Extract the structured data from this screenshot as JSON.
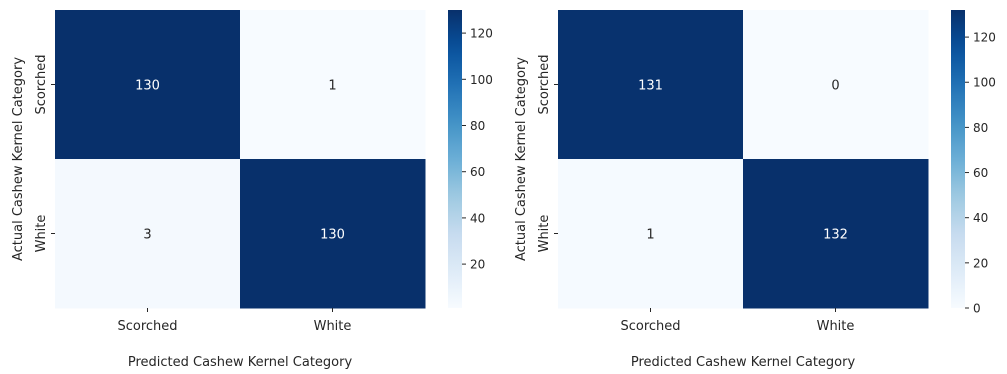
{
  "chart_data": [
    {
      "type": "heatmap",
      "xlabel": "Predicted Cashew Kernel Category",
      "ylabel": "Actual Cashew Kernel Category",
      "x_categories": [
        "Scorched",
        "White"
      ],
      "y_categories": [
        "Scorched",
        "White"
      ],
      "values": [
        [
          130,
          1
        ],
        [
          3,
          130
        ]
      ],
      "colormap": "Blues",
      "vmin": 1,
      "vmax": 130,
      "colorbar_ticks": [
        20,
        40,
        60,
        80,
        100,
        120
      ]
    },
    {
      "type": "heatmap",
      "xlabel": "Predicted Cashew Kernel Category",
      "ylabel": "Actual Cashew Kernel Category",
      "x_categories": [
        "Scorched",
        "White"
      ],
      "y_categories": [
        "Scorched",
        "White"
      ],
      "values": [
        [
          131,
          0
        ],
        [
          1,
          132
        ]
      ],
      "colormap": "Blues",
      "vmin": 0,
      "vmax": 132,
      "colorbar_ticks": [
        0,
        20,
        40,
        60,
        80,
        100,
        120
      ]
    }
  ]
}
